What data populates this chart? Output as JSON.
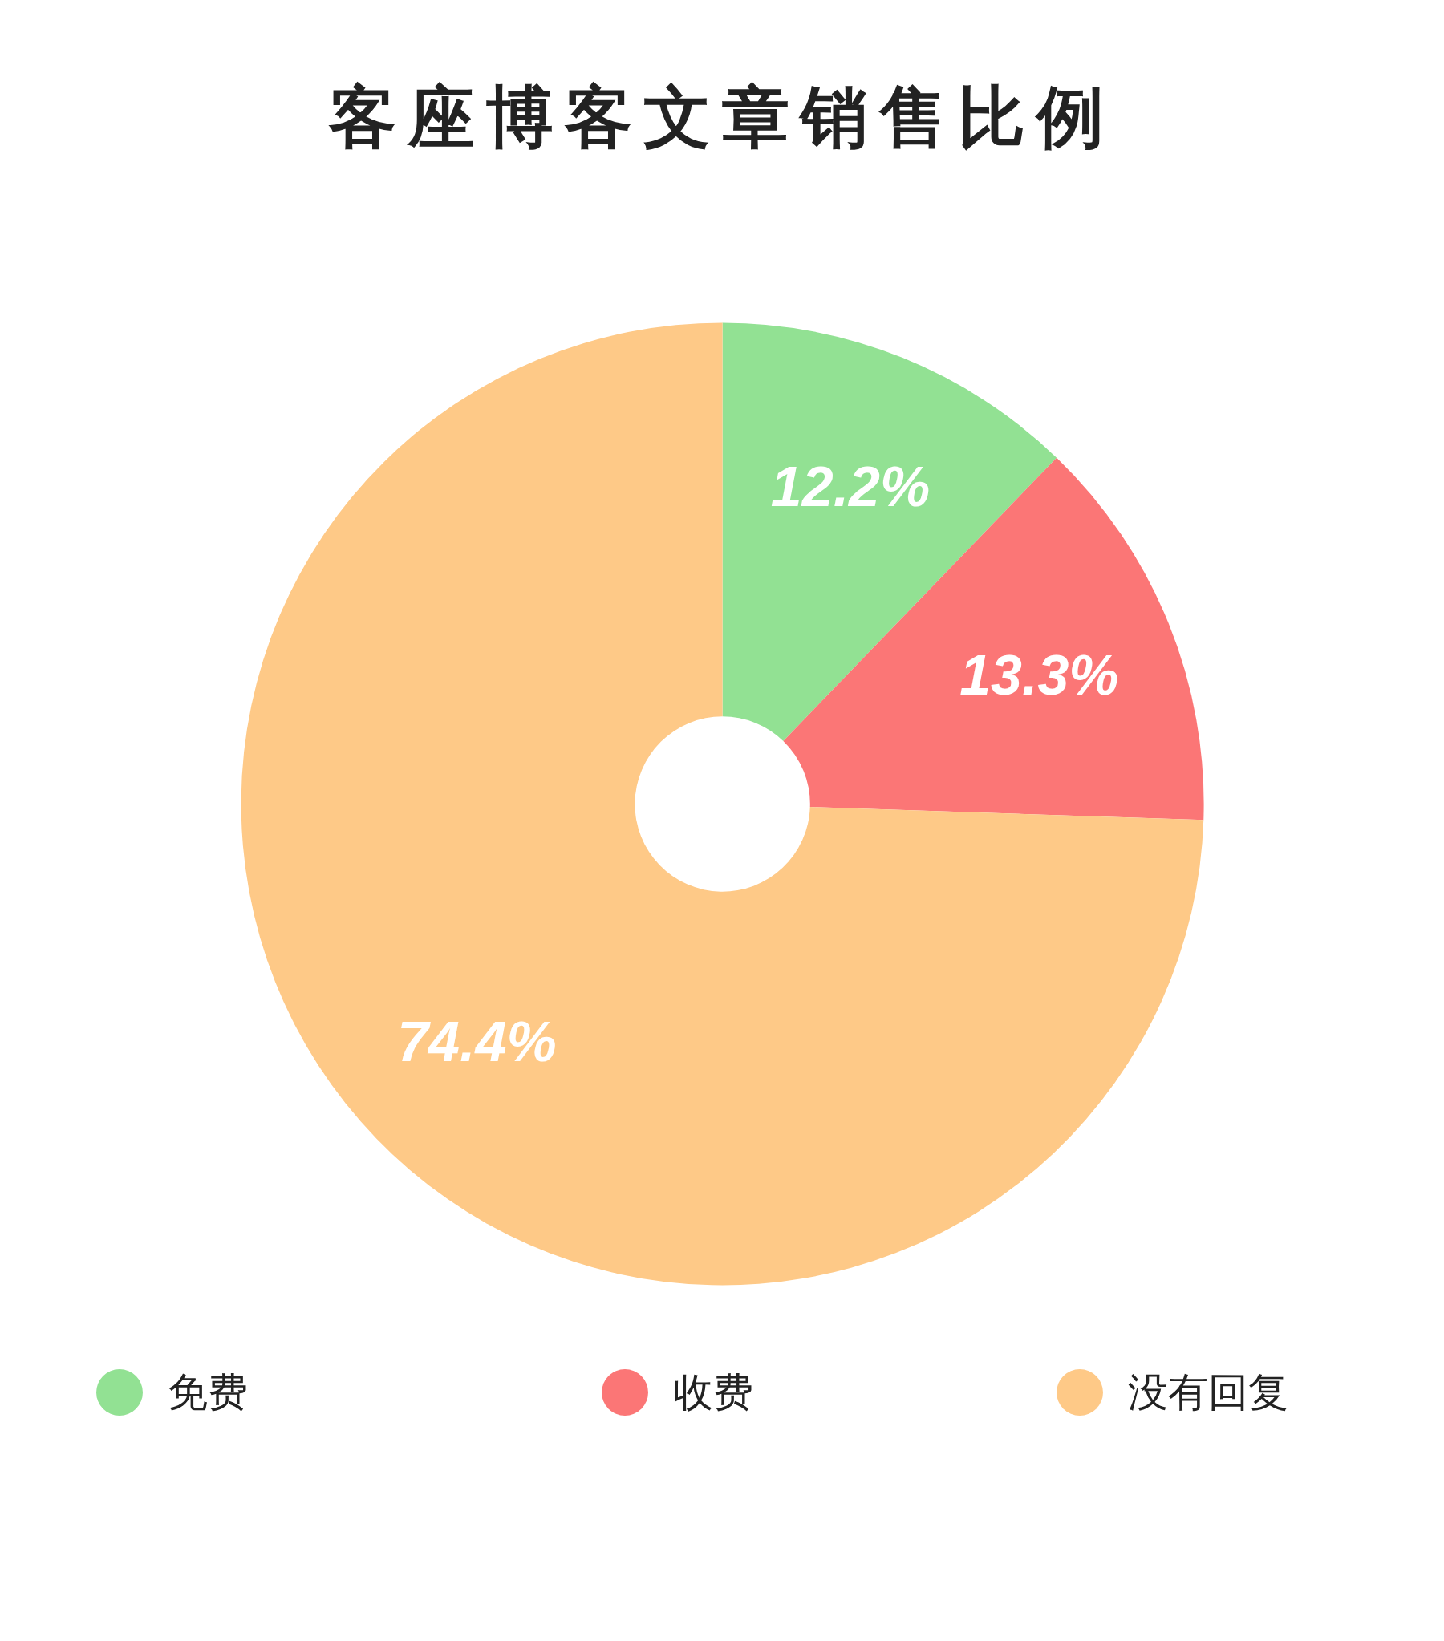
{
  "chart_data": {
    "type": "donut",
    "title": "客座博客文章销售比例",
    "categories": [
      "免费",
      "收费",
      "没有回复"
    ],
    "values": [
      12.2,
      13.3,
      74.4
    ],
    "colors": [
      "#92e193",
      "#fb7676",
      "#fec987"
    ],
    "value_labels": [
      "12.2%",
      "13.3%",
      "74.4%"
    ],
    "legend": "bottom"
  }
}
